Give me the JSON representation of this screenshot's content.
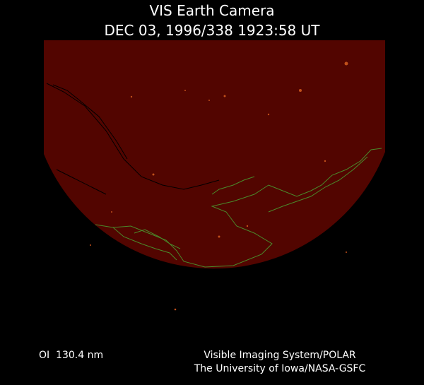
{
  "header": {
    "title": "VIS Earth Camera",
    "timestamp": "DEC 03, 1996/338 1923:58 UT"
  },
  "footer": {
    "filter": "OI  130.4 nm",
    "instrument": "Visible Imaging System/POLAR",
    "institution": "The University of Iowa/NASA-GSFC"
  }
}
